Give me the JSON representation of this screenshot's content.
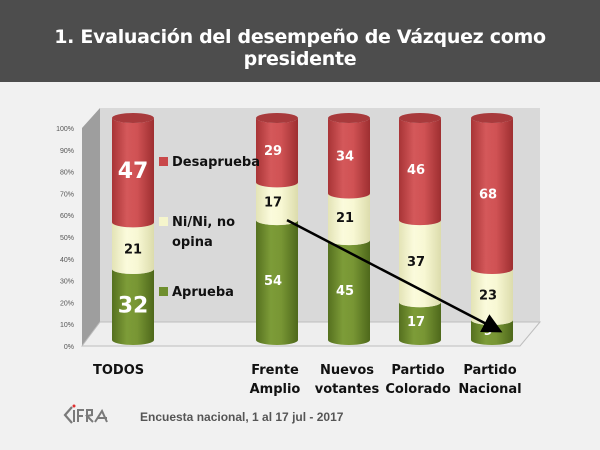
{
  "header": {
    "title": "1.   Evaluación del desempeño de Vázquez como presidente"
  },
  "footer": {
    "logo_text": "CIFRA",
    "source": "Encuesta nacional,  1 al 17 jul - 2017"
  },
  "chart_data": {
    "type": "bar",
    "stacked": true,
    "style": "3d-cylinder",
    "title": "Evaluación del desempeño de Vázquez como presidente",
    "categories": [
      "TODOS",
      "Frente Amplio",
      "Nuevos votantes",
      "Partido Colorado",
      "Partido Nacional"
    ],
    "category_lines": [
      [
        "TODOS"
      ],
      [
        "Frente",
        "Amplio"
      ],
      [
        "Nuevos",
        "votantes"
      ],
      [
        "Partido",
        "Colorado"
      ],
      [
        "Partido",
        "Nacional"
      ]
    ],
    "series": [
      {
        "name": "Aprueba",
        "color": "#6f8f2e",
        "values": [
          32,
          54,
          45,
          17,
          9
        ]
      },
      {
        "name": "Ni/Ni, no opina",
        "color": "#f5f5cc",
        "values": [
          21,
          17,
          21,
          37,
          23
        ]
      },
      {
        "name": "Desaprueba",
        "color": "#c9484a",
        "values": [
          47,
          29,
          34,
          46,
          68
        ]
      }
    ],
    "legend": {
      "placement": "inside-left",
      "entries": [
        {
          "label": "Desaprueba",
          "color": "#c9484a"
        },
        {
          "label": "Ni/Ni, no opina",
          "label_lines": [
            "Ni/Ni, no",
            "opina"
          ],
          "color": "#f5f5cc"
        },
        {
          "label": "Aprueba",
          "color": "#6f8f2e"
        }
      ]
    },
    "y_ticks": [
      "0%",
      "10%",
      "20%",
      "30%",
      "40%",
      "50%",
      "60%",
      "70%",
      "80%",
      "90%",
      "100%"
    ],
    "ylim": [
      0,
      100
    ],
    "xlabel": "",
    "ylabel": "",
    "grid": false,
    "annotation": {
      "type": "arrow",
      "from_category": "Frente Amplio",
      "from_value": 54,
      "to_category": "Partido Nacional",
      "to_value": 9,
      "color": "#000000"
    }
  }
}
